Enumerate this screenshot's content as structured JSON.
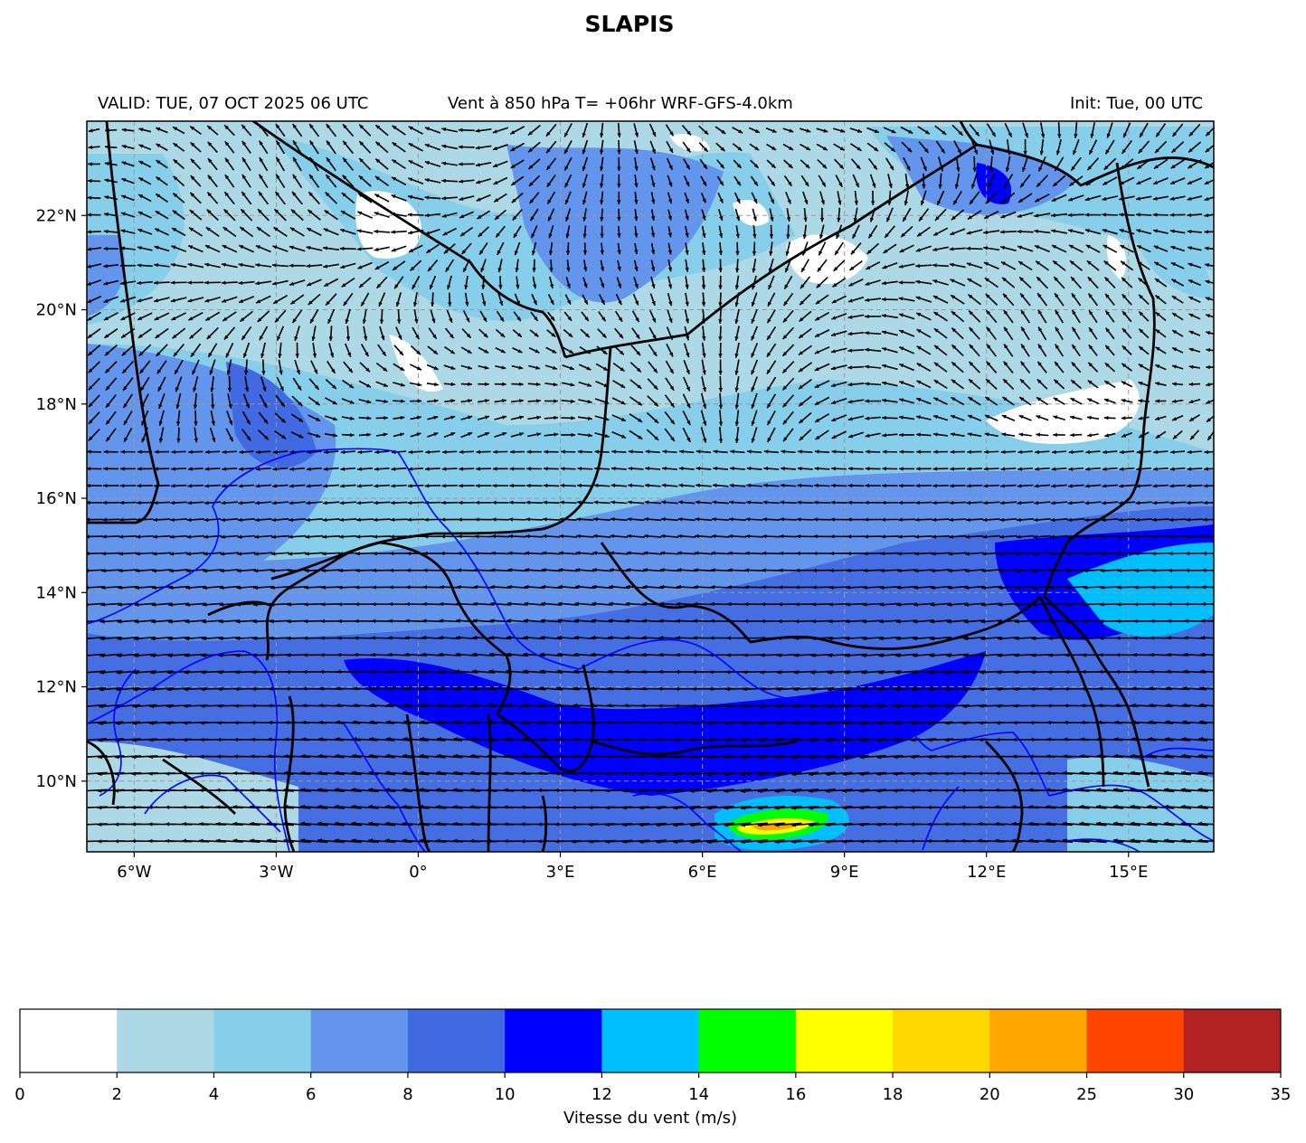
{
  "title": "SLAPIS",
  "header": {
    "valid": "VALID: TUE, 07 OCT 2025 06 UTC",
    "center": "Vent à 850 hPa T= +06hr  WRF-GFS-4.0km",
    "init": "Init: Tue, 00 UTC"
  },
  "map": {
    "extent": {
      "lon_min": -7.0,
      "lon_max": 16.8,
      "lat_min": 8.5,
      "lat_max": 24.0
    },
    "lat_ticks": [
      {
        "value": 10,
        "label": "10°N"
      },
      {
        "value": 12,
        "label": "12°N"
      },
      {
        "value": 14,
        "label": "14°N"
      },
      {
        "value": 16,
        "label": "16°N"
      },
      {
        "value": 18,
        "label": "18°N"
      },
      {
        "value": 20,
        "label": "20°N"
      },
      {
        "value": 22,
        "label": "22°N"
      }
    ],
    "lon_ticks": [
      {
        "value": -6,
        "label": "6°W"
      },
      {
        "value": -3,
        "label": "3°W"
      },
      {
        "value": 0,
        "label": "0°"
      },
      {
        "value": 3,
        "label": "3°E"
      },
      {
        "value": 6,
        "label": "6°E"
      },
      {
        "value": 9,
        "label": "9°E"
      },
      {
        "value": 12,
        "label": "12°E"
      },
      {
        "value": 15,
        "label": "15°E"
      }
    ],
    "gridlines": true,
    "vector_color": "#000000",
    "border_color": "#000000",
    "admin_border_color": "#0000ff"
  },
  "colorbar": {
    "label": "Vitesse du vent (m/s)",
    "ticks": [
      "0",
      "2",
      "4",
      "6",
      "8",
      "10",
      "12",
      "14",
      "16",
      "18",
      "20",
      "25",
      "30",
      "35"
    ],
    "colors": [
      "#ffffff",
      "#add8e6",
      "#87ceeb",
      "#6495ed",
      "#4169e1",
      "#0000ff",
      "#00bfff",
      "#00ff00",
      "#ffff00",
      "#ffd700",
      "#ffa500",
      "#ff4500",
      "#b22222"
    ]
  }
}
